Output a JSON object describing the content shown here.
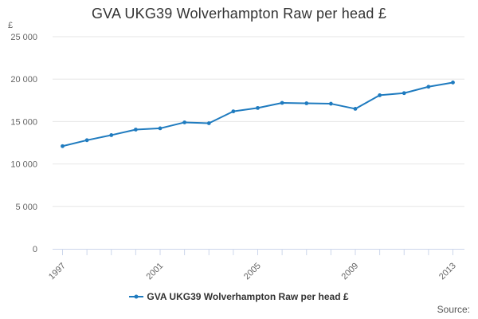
{
  "chart_data": {
    "type": "line",
    "title": "GVA UKG39 Wolverhampton Raw per head £",
    "ylabel": "£",
    "xlabel": "",
    "x": [
      1997,
      1998,
      1999,
      2000,
      2001,
      2002,
      2003,
      2004,
      2005,
      2006,
      2007,
      2008,
      2009,
      2010,
      2011,
      2012,
      2013
    ],
    "series": [
      {
        "name": "GVA UKG39 Wolverhampton Raw per head £",
        "values": [
          12100,
          12800,
          13400,
          14050,
          14200,
          14900,
          14800,
          16200,
          16600,
          17200,
          17150,
          17100,
          16500,
          18100,
          18350,
          19100,
          19600
        ],
        "color": "#1f7bbf"
      }
    ],
    "ylim": [
      0,
      25000
    ],
    "yticks": [
      0,
      5000,
      10000,
      15000,
      20000,
      25000
    ],
    "ytick_labels": [
      "0",
      "5 000",
      "10 000",
      "15 000",
      "20 000",
      "25 000"
    ],
    "xticks": [
      1997,
      2001,
      2005,
      2009,
      2013
    ],
    "xtick_labels": [
      "1997",
      "2001",
      "2005",
      "2009",
      "2013"
    ],
    "grid": true,
    "legend": "bottom-center"
  },
  "credits": "Source:"
}
